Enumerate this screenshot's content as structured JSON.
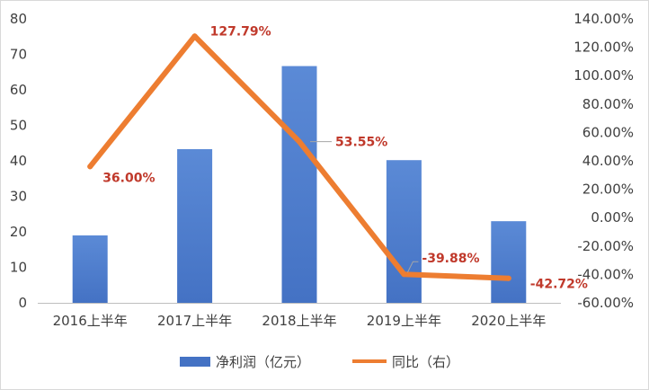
{
  "chart_data": {
    "type": "bar+line",
    "categories": [
      "2016上半年",
      "2017上半年",
      "2018上半年",
      "2019上半年",
      "2020上半年"
    ],
    "series": [
      {
        "name": "净利润（亿元）",
        "type": "bar",
        "axis": "left",
        "color": "#4472c4",
        "values": [
          19,
          43.3,
          66.7,
          40.2,
          23
        ]
      },
      {
        "name": "同比（右）",
        "type": "line",
        "axis": "right",
        "color": "#ed7d31",
        "values": [
          36.0,
          127.79,
          53.55,
          -39.88,
          -42.72
        ],
        "labels": [
          "36.00%",
          "127.79%",
          "53.55%",
          "-39.88%",
          "-42.72%"
        ]
      }
    ],
    "y_left": {
      "range": [
        0,
        80
      ],
      "ticks": [
        "0",
        "10",
        "20",
        "30",
        "40",
        "50",
        "60",
        "70",
        "80"
      ]
    },
    "y_right": {
      "range": [
        -60,
        140
      ],
      "ticks": [
        "-60.00%",
        "-40.00%",
        "-20.00%",
        "0.00%",
        "20.00%",
        "40.00%",
        "60.00%",
        "80.00%",
        "100.00%",
        "120.00%",
        "140.00%"
      ]
    },
    "grid": false,
    "legend": "bottom",
    "title": "",
    "xlabel": "",
    "ylabel": ""
  }
}
